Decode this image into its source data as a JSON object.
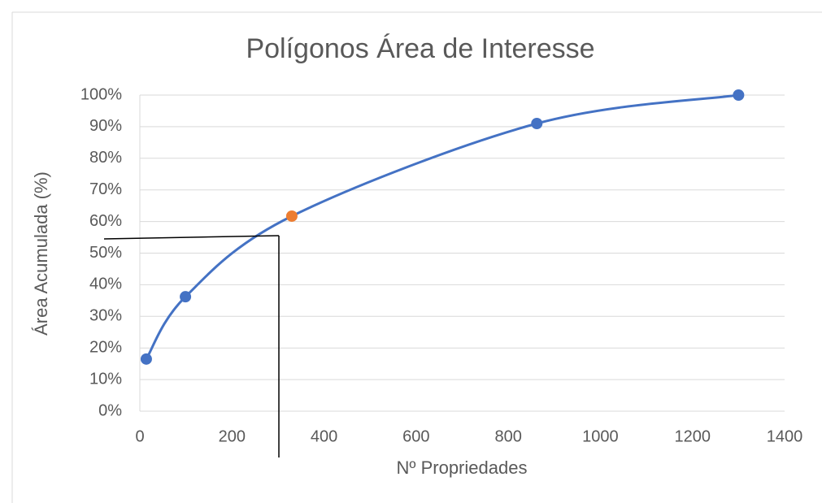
{
  "chart_data": {
    "type": "scatter",
    "title": "Polígonos Área de Interesse",
    "x_label": "Nº Propriedades",
    "y_label": "Área Acumulada  (%)",
    "x": [
      14,
      99,
      330,
      862,
      1300
    ],
    "values": [
      16.5,
      36.2,
      61.7,
      91,
      100
    ],
    "color": "#4472c4",
    "point_colors": [
      "#4472c4",
      "#4472c4",
      "#ed7d31",
      "#4472c4",
      "#4472c4"
    ],
    "smooth": true,
    "xlim": [
      0,
      1400
    ],
    "xticks": [
      0,
      200,
      400,
      600,
      800,
      1000,
      1200,
      1400
    ],
    "ylim": [
      0,
      100
    ],
    "yticks": [
      {
        "value": 0,
        "label": "0%"
      },
      {
        "value": 10,
        "label": "10%"
      },
      {
        "value": 20,
        "label": "20%"
      },
      {
        "value": 30,
        "label": "30%"
      },
      {
        "value": 40,
        "label": "40%"
      },
      {
        "value": 50,
        "label": "50%"
      },
      {
        "value": 60,
        "label": "60%"
      },
      {
        "value": 70,
        "label": "70%"
      },
      {
        "value": 80,
        "label": "80%"
      },
      {
        "value": 90,
        "label": "90%"
      },
      {
        "value": 100,
        "label": "100%"
      }
    ],
    "grid": true
  }
}
